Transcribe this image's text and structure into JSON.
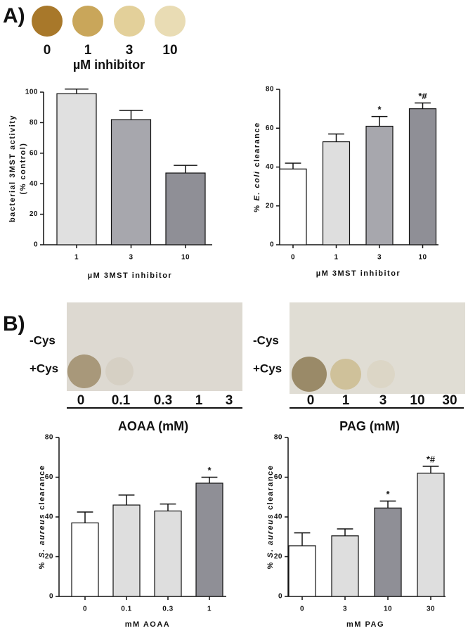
{
  "panel_a": {
    "label": "A)",
    "doses": [
      "0",
      "1",
      "3",
      "10"
    ],
    "dose_label": "µM inhibitor"
  },
  "panel_b": {
    "label": "B)",
    "left_plate": {
      "rows": [
        "-Cys",
        "+Cys"
      ],
      "doses": [
        "0",
        "0.1",
        "0.3",
        "1",
        "3"
      ],
      "dose_label": "AOAA (mM)"
    },
    "right_plate": {
      "rows": [
        "-Cys",
        "+Cys"
      ],
      "doses": [
        "0",
        "1",
        "3",
        "10",
        "30"
      ],
      "dose_label": "PAG (mM)"
    }
  },
  "chart_data": [
    {
      "type": "bar",
      "y_label": [
        "bacterial 3MST activity",
        "(% control)"
      ],
      "x_label": "µM 3MST inhibitor",
      "categories": [
        "1",
        "3",
        "10"
      ],
      "values": [
        99,
        82,
        47
      ],
      "errors": [
        3,
        6,
        5
      ],
      "colors": [
        "#e0e0e0",
        "#a7a7ad",
        "#8f8f96"
      ],
      "annotations": [
        null,
        null,
        null
      ],
      "ylim": [
        0,
        100
      ],
      "yticks": [
        0,
        20,
        40,
        60,
        80,
        100
      ]
    },
    {
      "type": "bar",
      "y_label_parts": [
        {
          "text": "%",
          "italic": false
        },
        {
          "text": "E. coli",
          "italic": true
        },
        {
          "text": "clearance",
          "italic": false
        }
      ],
      "x_label": "µM 3MST inhibitor",
      "categories": [
        "0",
        "1",
        "3",
        "10"
      ],
      "values": [
        39,
        53,
        61,
        70
      ],
      "errors": [
        3,
        4,
        5,
        3
      ],
      "colors": [
        "#ffffff",
        "#dedede",
        "#a7a7ad",
        "#8f8f96"
      ],
      "annotations": [
        null,
        null,
        "*",
        "*#"
      ],
      "ylim": [
        0,
        80
      ],
      "yticks": [
        0,
        20,
        40,
        60,
        80
      ]
    },
    {
      "type": "bar",
      "y_label_parts": [
        {
          "text": "%",
          "italic": false
        },
        {
          "text": "S. aureus",
          "italic": true
        },
        {
          "text": "clearance",
          "italic": false
        }
      ],
      "x_label": "mM AOAA",
      "categories": [
        "0",
        "0.1",
        "0.3",
        "1"
      ],
      "values": [
        37,
        46,
        43,
        57
      ],
      "errors": [
        5.5,
        5,
        3.5,
        3
      ],
      "colors": [
        "#ffffff",
        "#dedede",
        "#dedede",
        "#8f8f96"
      ],
      "annotations": [
        null,
        null,
        null,
        "*"
      ],
      "ylim": [
        0,
        80
      ],
      "yticks": [
        0,
        20,
        40,
        60,
        80
      ]
    },
    {
      "type": "bar",
      "y_label_parts": [
        {
          "text": "%",
          "italic": false
        },
        {
          "text": "S. aureus",
          "italic": true
        },
        {
          "text": "clearance",
          "italic": false
        }
      ],
      "x_label": "mM PAG",
      "categories": [
        "0",
        "3",
        "10",
        "30"
      ],
      "values": [
        25.5,
        30.5,
        44.5,
        62
      ],
      "errors": [
        6.5,
        3.5,
        3.5,
        3.5
      ],
      "colors": [
        "#ffffff",
        "#dedede",
        "#8f8f96",
        "#dedede"
      ],
      "annotations": [
        null,
        null,
        "*",
        "*#"
      ],
      "ylim": [
        0,
        80
      ],
      "yticks": [
        0,
        20,
        40,
        60,
        80
      ]
    }
  ]
}
